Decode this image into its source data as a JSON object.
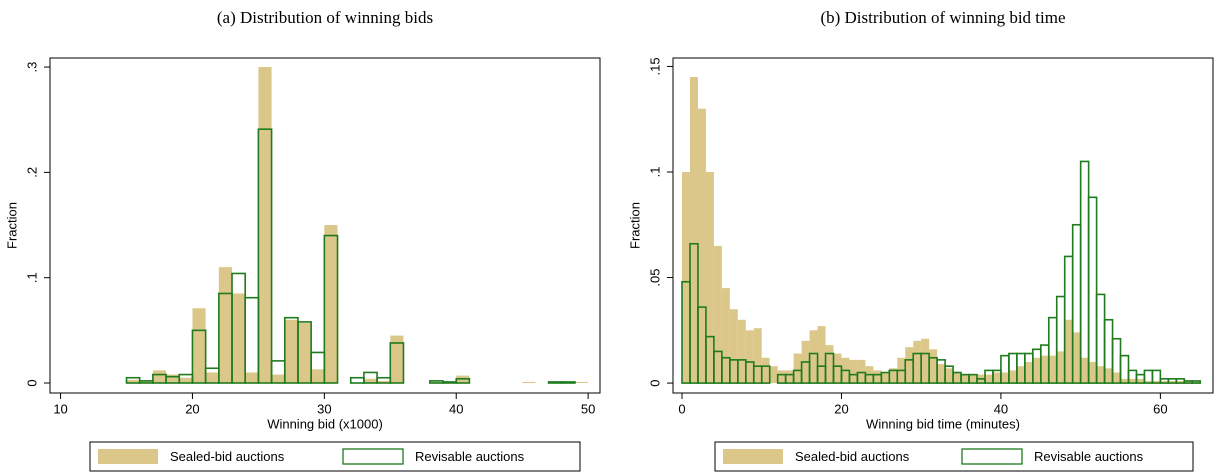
{
  "chart_data": [
    {
      "type": "histogram",
      "title": "(a) Distribution of winning bids",
      "x_label": "Winning bid (x1000)",
      "y_label": "Fraction",
      "bins": [
        15,
        16,
        17,
        18,
        19,
        20,
        21,
        22,
        23,
        24,
        25,
        26,
        27,
        28,
        29,
        30,
        31,
        32,
        33,
        34,
        35,
        36,
        37,
        38,
        39,
        40,
        41,
        42,
        43,
        44,
        45,
        46,
        47,
        48,
        49,
        50
      ],
      "series": [
        {
          "name": "Sealed-bid auctions",
          "color": "#dcc78a",
          "filled": true,
          "values": [
            0.003,
            0.002,
            0.012,
            0.008,
            0.005,
            0.071,
            0.01,
            0.11,
            0.085,
            0.01,
            0.3,
            0.008,
            0.06,
            0.057,
            0.013,
            0.15,
            0,
            0,
            0.004,
            0.002,
            0.045,
            0,
            0,
            0.001,
            0.001,
            0.007,
            0,
            0,
            0,
            0,
            0.001,
            0,
            0.001,
            0.001,
            0.001
          ]
        },
        {
          "name": "Revisable auctions",
          "color": "#1e7b1e",
          "filled": false,
          "values": [
            0.005,
            0.002,
            0.008,
            0.006,
            0.008,
            0.05,
            0.014,
            0.085,
            0.104,
            0.081,
            0.241,
            0.021,
            0.062,
            0.058,
            0.029,
            0.14,
            0,
            0.005,
            0.01,
            0.005,
            0.038,
            0,
            0,
            0.002,
            0.001,
            0.004,
            0,
            0,
            0,
            0,
            0,
            0,
            0.001,
            0.001,
            0
          ]
        }
      ],
      "xlim": [
        9.2,
        50.9
      ],
      "ylim": [
        -0.0095,
        0.3086
      ],
      "xticks": [
        10,
        20,
        30,
        40,
        50
      ],
      "yticks": [
        0,
        {
          "value": 0.1,
          "label": ".1"
        },
        {
          "value": 0.2,
          "label": ".2"
        },
        {
          "value": 0.3,
          "label": ".3"
        }
      ],
      "legend": "bottom"
    },
    {
      "type": "histogram",
      "title": "(b) Distribution of winning bid time",
      "x_label": "Winning bid time (minutes)",
      "y_label": "Fraction",
      "bins": [
        0,
        1,
        2,
        3,
        4,
        5,
        6,
        7,
        8,
        9,
        10,
        11,
        12,
        13,
        14,
        15,
        16,
        17,
        18,
        19,
        20,
        21,
        22,
        23,
        24,
        25,
        26,
        27,
        28,
        29,
        30,
        31,
        32,
        33,
        34,
        35,
        36,
        37,
        38,
        39,
        40,
        41,
        42,
        43,
        44,
        45,
        46,
        47,
        48,
        49,
        50,
        51,
        52,
        53,
        54,
        55,
        56,
        57,
        58,
        59,
        60,
        61,
        62,
        63,
        64,
        65
      ],
      "series": [
        {
          "name": "Sealed-bid auctions",
          "color": "#dcc78a",
          "filled": true,
          "values": [
            0.1,
            0.145,
            0.13,
            0.1,
            0.065,
            0.045,
            0.035,
            0.03,
            0.025,
            0.026,
            0.012,
            0.008,
            0.006,
            0.006,
            0.014,
            0.02,
            0.025,
            0.027,
            0.018,
            0.014,
            0.012,
            0.011,
            0.011,
            0.008,
            0.006,
            0.005,
            0.007,
            0.012,
            0.017,
            0.02,
            0.021,
            0.016,
            0.009,
            0.007,
            0.005,
            0.004,
            0.004,
            0.004,
            0.004,
            0.005,
            0.005,
            0.006,
            0.008,
            0.01,
            0.012,
            0.013,
            0.013,
            0.015,
            0.03,
            0.024,
            0.012,
            0.01,
            0.008,
            0.007,
            0.005,
            0.002,
            0.002,
            0.002,
            0.001,
            0.001,
            0.001,
            0.001,
            0.001,
            0.001,
            0.001
          ]
        },
        {
          "name": "Revisable auctions",
          "color": "#1e7b1e",
          "filled": false,
          "values": [
            0.048,
            0.066,
            0.036,
            0.022,
            0.015,
            0.012,
            0.011,
            0.011,
            0.01,
            0.008,
            0.008,
            0,
            0.004,
            0.004,
            0.006,
            0.01,
            0.014,
            0.008,
            0.014,
            0.008,
            0.006,
            0.004,
            0.005,
            0.004,
            0.004,
            0.005,
            0.006,
            0.006,
            0.011,
            0.014,
            0.014,
            0.012,
            0.011,
            0.008,
            0.005,
            0.004,
            0.004,
            0.002,
            0.006,
            0.006,
            0.013,
            0.014,
            0.014,
            0.014,
            0.016,
            0.018,
            0.031,
            0.041,
            0.06,
            0.075,
            0.105,
            0.088,
            0.042,
            0.03,
            0.021,
            0.013,
            0.006,
            0.004,
            0.006,
            0.006,
            0.002,
            0.002,
            0.002,
            0.001,
            0.001
          ]
        }
      ],
      "xlim": [
        -1.13,
        66.6
      ],
      "ylim": [
        -0.0047,
        0.154
      ],
      "xticks": [
        0,
        20,
        40,
        60
      ],
      "yticks": [
        0,
        {
          "value": 0.05,
          "label": ".05"
        },
        {
          "value": 0.1,
          "label": ".1"
        },
        {
          "value": 0.15,
          "label": ".15"
        }
      ],
      "legend": "bottom"
    }
  ]
}
